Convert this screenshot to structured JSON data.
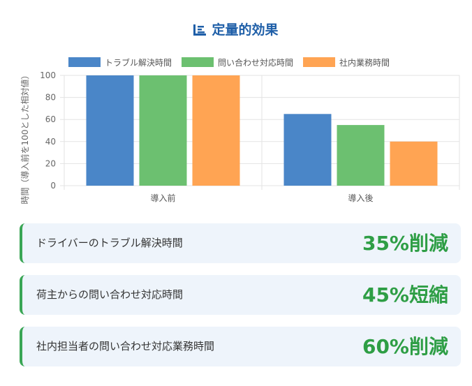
{
  "header": {
    "title": "定量的効果",
    "icon": "bar-chart-icon"
  },
  "chart_data": {
    "type": "bar",
    "categories": [
      "導入前",
      "導入後"
    ],
    "series": [
      {
        "name": "トラブル解決時間",
        "values": [
          100,
          65
        ],
        "color": "#4a86c8"
      },
      {
        "name": "問い合わせ対応時間",
        "values": [
          100,
          55
        ],
        "color": "#6cc070"
      },
      {
        "name": "社内業務時間",
        "values": [
          100,
          40
        ],
        "color": "#ffa453"
      }
    ],
    "ylabel": "時間（導入前を100とした相対値）",
    "ylim": [
      0,
      100
    ],
    "yticks": [
      0,
      20,
      40,
      60,
      80,
      100
    ],
    "grid": true,
    "legend": "top"
  },
  "effects": [
    {
      "label": "ドライバーのトラブル解決時間",
      "value": "35%削減"
    },
    {
      "label": "荷主からの問い合わせ対応時間",
      "value": "45%短縮"
    },
    {
      "label": "社内担当者の問い合わせ対応業務時間",
      "value": "60%削減"
    }
  ]
}
